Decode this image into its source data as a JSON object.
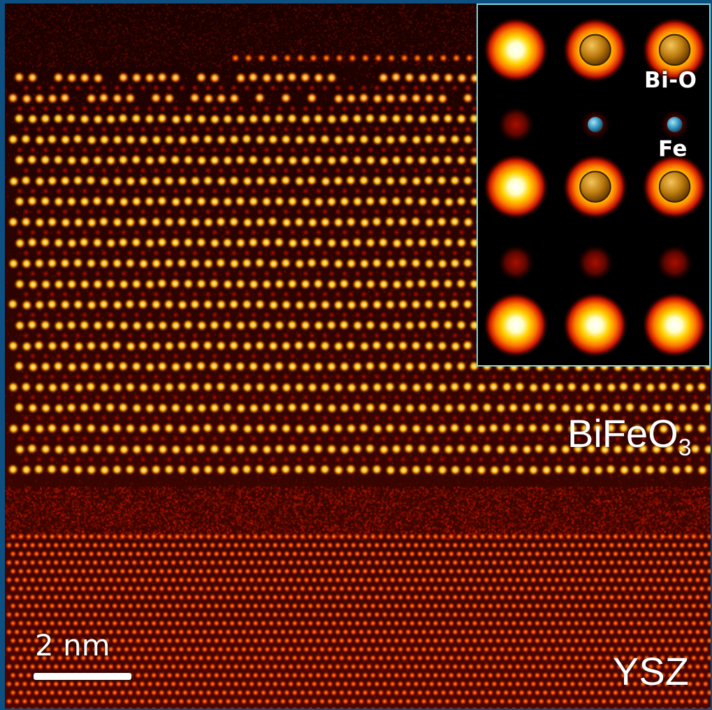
{
  "image": {
    "type": "HAADF-STEM atomic resolution micrograph",
    "colormap": "hot",
    "frame_color": "#0d4f80"
  },
  "inset": {
    "border_color": "#7fd6e0",
    "labels": {
      "bi_o": "Bi-O",
      "fe": "Fe"
    },
    "atom_colors": {
      "bi": "#c7870f",
      "fe": "#3aa0c8"
    }
  },
  "labels": {
    "film_main": "BiFeO",
    "film_sub": "3",
    "substrate": "YSZ"
  },
  "scale_bar": {
    "label": "2 nm"
  }
}
